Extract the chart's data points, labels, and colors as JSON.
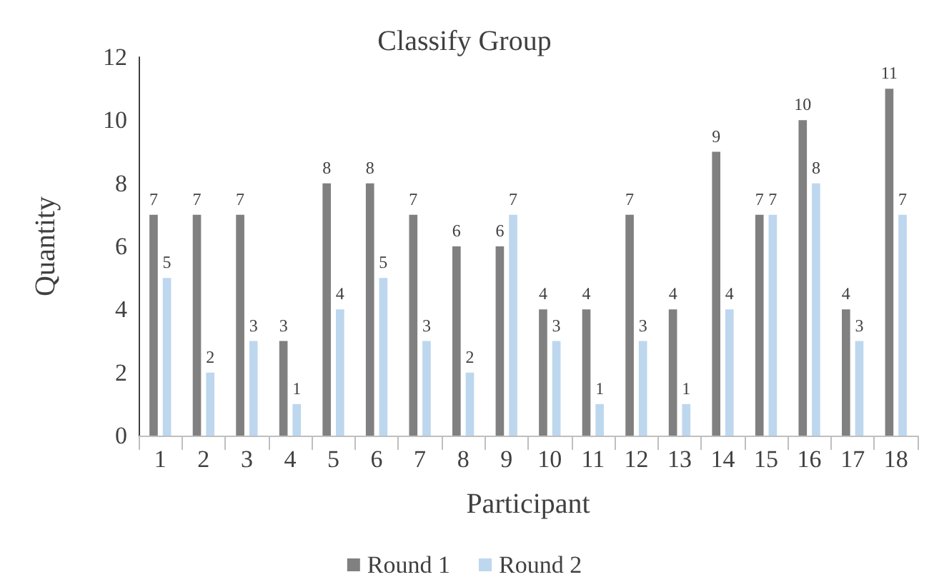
{
  "chart_data": {
    "type": "bar",
    "title": "Classify Group",
    "xlabel": "Participant",
    "ylabel": "Quantity",
    "categories": [
      "1",
      "2",
      "3",
      "4",
      "5",
      "6",
      "7",
      "8",
      "9",
      "10",
      "11",
      "12",
      "13",
      "14",
      "15",
      "16",
      "17",
      "18"
    ],
    "series": [
      {
        "name": "Round 1",
        "color": "#808080",
        "values": [
          7,
          7,
          7,
          3,
          8,
          8,
          7,
          6,
          6,
          4,
          4,
          7,
          4,
          9,
          7,
          10,
          4,
          11
        ]
      },
      {
        "name": "Round 2",
        "color": "#bdd7ee",
        "values": [
          5,
          2,
          3,
          1,
          4,
          5,
          3,
          2,
          7,
          3,
          1,
          3,
          1,
          4,
          7,
          8,
          3,
          7
        ]
      }
    ],
    "ylim": [
      0,
      12
    ],
    "yticks": [
      0,
      2,
      4,
      6,
      8,
      10,
      12
    ],
    "grid": false,
    "legend": "bottom",
    "data_labels": true
  }
}
